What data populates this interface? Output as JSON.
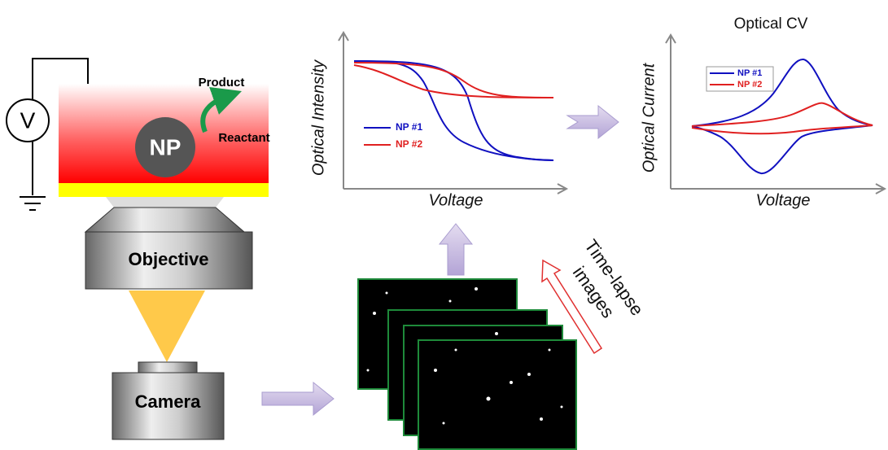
{
  "apparatus": {
    "voltmeter": "V",
    "nanoparticle": "NP",
    "product": "Product",
    "reactant": "Reactant",
    "objective": "Objective",
    "camera": "Camera"
  },
  "intensity_plot": {
    "y_label": "Optical Intensity",
    "x_label": "Voltage",
    "legend": [
      "NP #1",
      "NP #2"
    ]
  },
  "cv_plot": {
    "title": "Optical CV",
    "y_label": "Optical Current",
    "x_label": "Voltage",
    "legend": [
      "NP #1",
      "NP #2"
    ]
  },
  "image_stack": {
    "label": [
      "Time-lapse",
      "images"
    ]
  }
}
